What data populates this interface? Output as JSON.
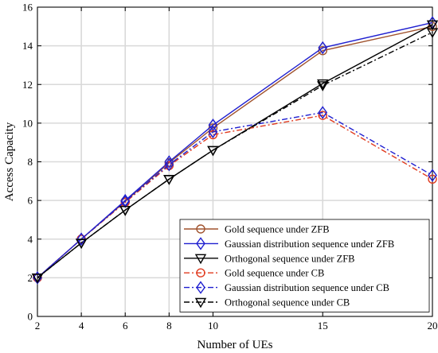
{
  "chart_data": {
    "type": "line",
    "title": "",
    "xlabel": "Number of UEs",
    "ylabel": "Access Capacity",
    "x": [
      2,
      4,
      6,
      8,
      10,
      15,
      20
    ],
    "xticks": [
      2,
      4,
      6,
      8,
      10,
      15,
      20
    ],
    "yticks": [
      0,
      2,
      4,
      6,
      8,
      10,
      12,
      14,
      16
    ],
    "ylim": [
      0,
      16
    ],
    "grid": true,
    "legend_position": "bottom-right",
    "series": [
      {
        "name": "Gold sequence under ZFB",
        "values": [
          2.0,
          4.0,
          5.95,
          7.95,
          9.75,
          13.75,
          15.0
        ],
        "color": "#a0522d",
        "dash": "solid",
        "marker": "circle"
      },
      {
        "name": "Gaussian distribution sequence under ZFB",
        "values": [
          2.0,
          4.0,
          6.0,
          8.0,
          9.9,
          13.9,
          15.2
        ],
        "color": "#1f1fd0",
        "dash": "solid",
        "marker": "diamond"
      },
      {
        "name": "Orthogonal sequence under ZFB",
        "values": [
          2.0,
          3.8,
          5.5,
          7.1,
          8.6,
          12.05,
          15.1
        ],
        "color": "#000000",
        "dash": "solid",
        "marker": "triangle-down"
      },
      {
        "name": "Gold sequence under CB",
        "values": [
          2.0,
          4.0,
          5.9,
          7.8,
          9.4,
          10.4,
          7.1
        ],
        "color": "#e03a1e",
        "dash": "dashdot",
        "marker": "circle"
      },
      {
        "name": "Gaussian distribution sequence under CB",
        "values": [
          2.0,
          4.0,
          5.95,
          7.85,
          9.55,
          10.55,
          7.3
        ],
        "color": "#1f1fd0",
        "dash": "dashdot",
        "marker": "diamond"
      },
      {
        "name": "Orthogonal sequence under CB",
        "values": [
          2.0,
          3.8,
          5.5,
          7.1,
          8.6,
          11.95,
          14.7
        ],
        "color": "#000000",
        "dash": "dashdot",
        "marker": "triangle-down"
      }
    ]
  }
}
